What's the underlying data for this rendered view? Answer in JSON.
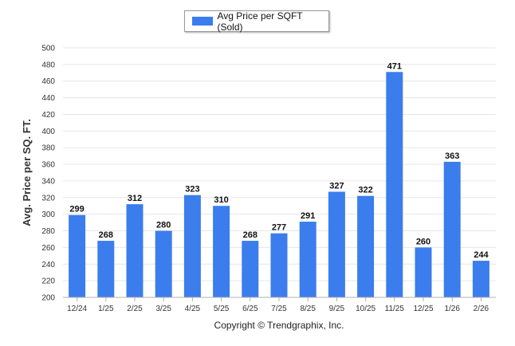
{
  "legend": {
    "label": "Avg Price per SQFT (Sold)"
  },
  "footer": {
    "copyright": "Copyright © Trendgraphix, Inc."
  },
  "colors": {
    "bar": "#3b7ded",
    "grid": "#e6e6e6",
    "axis": "#b0b0b0"
  },
  "chart_data": {
    "type": "bar",
    "categories": [
      "12/24",
      "1/25",
      "2/25",
      "3/25",
      "4/25",
      "5/25",
      "6/25",
      "7/25",
      "8/25",
      "9/25",
      "10/25",
      "11/25",
      "12/25",
      "1/26",
      "2/26"
    ],
    "series": [
      {
        "name": "Avg Price per SQFT (Sold)",
        "values": [
          299,
          268,
          312,
          280,
          323,
          310,
          268,
          277,
          291,
          327,
          322,
          471,
          260,
          363,
          244
        ]
      }
    ],
    "ylabel": "Avg. Price per SQ. FT.",
    "xlabel": "",
    "ylim": [
      200,
      500
    ],
    "yticks": [
      200,
      220,
      240,
      260,
      280,
      300,
      320,
      340,
      360,
      380,
      400,
      420,
      440,
      460,
      480,
      500
    ],
    "grid": true,
    "legend_position": "top-center"
  }
}
